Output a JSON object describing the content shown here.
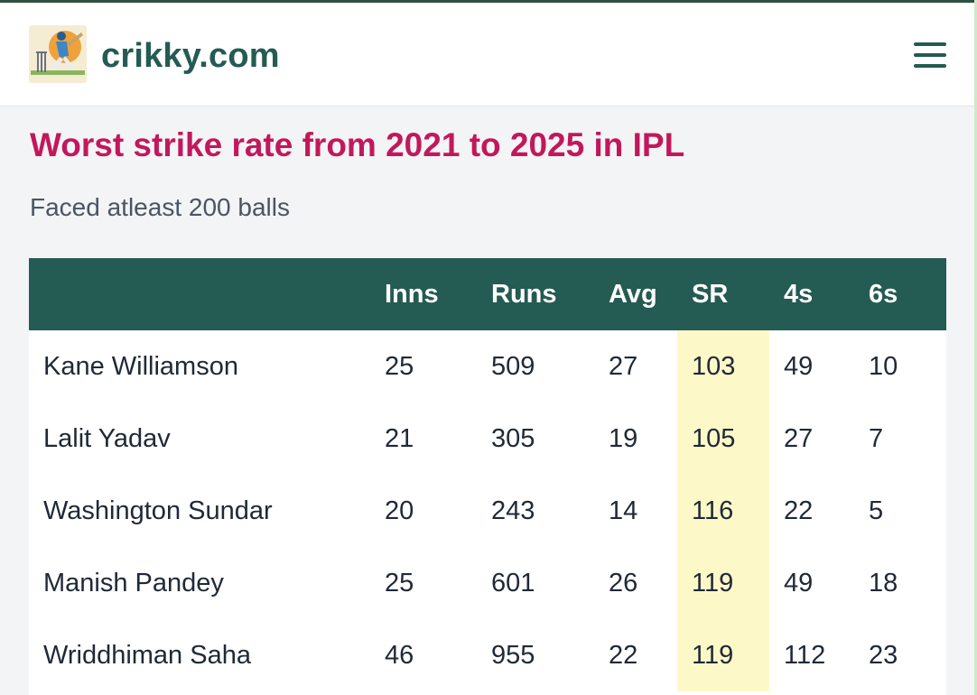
{
  "header": {
    "brand": "crikky.com",
    "logo_icon": "cricket-batsman-logo-icon",
    "menu_icon": "hamburger-menu-icon"
  },
  "page": {
    "title": "Worst strike rate from 2021 to 2025 in IPL",
    "subtitle": "Faced atleast 200 balls"
  },
  "colors": {
    "brand": "#245b52",
    "title": "#c2185b",
    "highlight": "#fdf8c8"
  },
  "table": {
    "columns": [
      "",
      "Inns",
      "Runs",
      "Avg",
      "SR",
      "4s",
      "6s"
    ],
    "highlight_column": "SR",
    "rows": [
      {
        "name": "Kane Williamson",
        "inns": "25",
        "runs": "509",
        "avg": "27",
        "sr": "103",
        "fours": "49",
        "sixes": "10"
      },
      {
        "name": "Lalit Yadav",
        "inns": "21",
        "runs": "305",
        "avg": "19",
        "sr": "105",
        "fours": "27",
        "sixes": "7"
      },
      {
        "name": "Washington Sundar",
        "inns": "20",
        "runs": "243",
        "avg": "14",
        "sr": "116",
        "fours": "22",
        "sixes": "5"
      },
      {
        "name": "Manish Pandey",
        "inns": "25",
        "runs": "601",
        "avg": "26",
        "sr": "119",
        "fours": "49",
        "sixes": "18"
      },
      {
        "name": "Wriddhiman Saha",
        "inns": "46",
        "runs": "955",
        "avg": "22",
        "sr": "119",
        "fours": "112",
        "sixes": "23"
      }
    ]
  }
}
